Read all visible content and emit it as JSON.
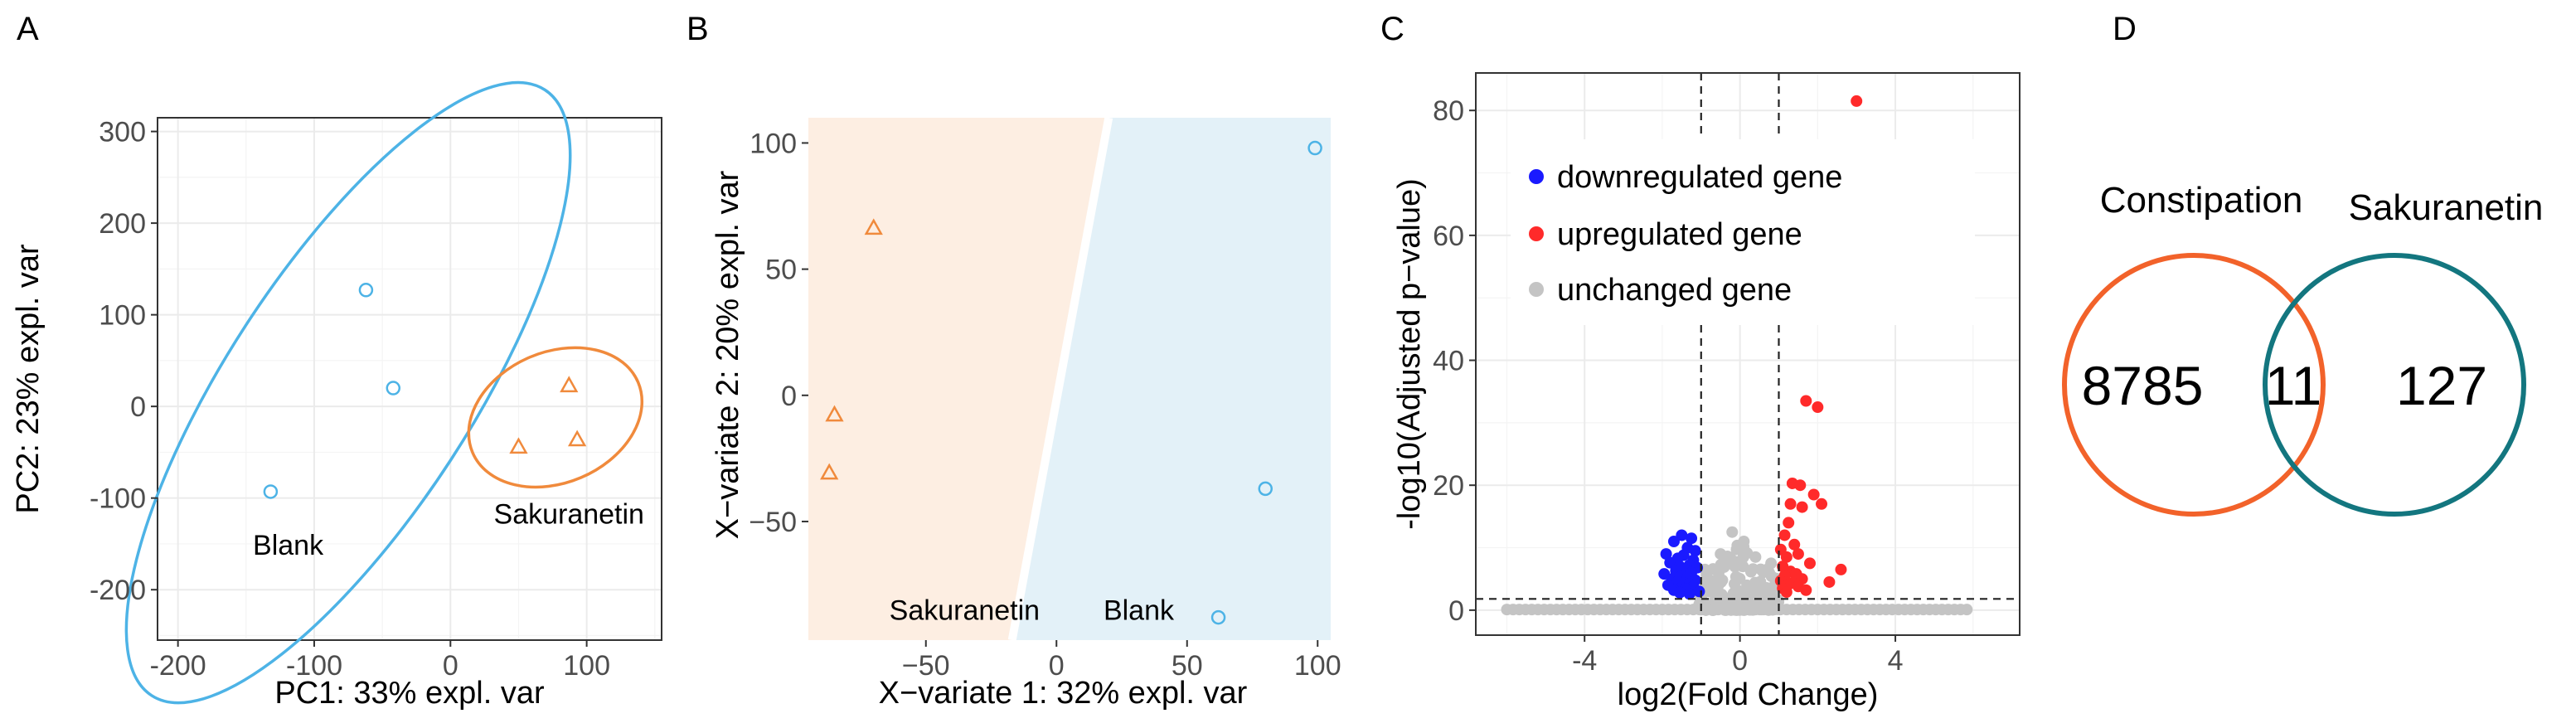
{
  "chart_data": [
    {
      "panel": "A",
      "type": "scatter",
      "xlabel": "PC1: 33% expl. var",
      "ylabel": "PC2: 23% expl. var",
      "xlim": [
        -215,
        155
      ],
      "ylim": [
        -255,
        315
      ],
      "x_ticks": [
        -200,
        -100,
        0,
        100
      ],
      "y_ticks": [
        -200,
        -100,
        0,
        100,
        200,
        300
      ],
      "grid": true,
      "series": [
        {
          "name": "Blank",
          "marker": "circle",
          "color": "#4db3e6",
          "x": [
            -62,
            -42,
            -132
          ],
          "y": [
            127,
            20,
            -93
          ],
          "ellipse": {
            "cx": -75,
            "cy": 15,
            "rx": 265,
            "ry": 90,
            "angle_deg": 57
          },
          "label": {
            "text": "Blank",
            "x": -145,
            "y": -162
          }
        },
        {
          "name": "Sakuranetin",
          "marker": "triangle",
          "color": "#f08a3c",
          "x": [
            87,
            93,
            50
          ],
          "y": [
            22,
            -37,
            -45
          ],
          "ellipse": {
            "cx": 77,
            "cy": -12,
            "rx": 66,
            "ry": 48,
            "angle_deg": 23
          },
          "label": {
            "text": "Sakuranetin",
            "x": 87,
            "y": -128
          }
        }
      ]
    },
    {
      "panel": "B",
      "type": "scatter",
      "xlabel": "X−variate 1: 32% expl. var",
      "ylabel": "X−variate 2: 20% expl. var",
      "xlim": [
        -95,
        105
      ],
      "ylim": [
        -97,
        110
      ],
      "x_ticks": [
        -50,
        0,
        50,
        100
      ],
      "x_tick_labels": [
        "−50",
        "0",
        "50",
        "100"
      ],
      "y_ticks": [
        -50,
        0,
        50,
        100
      ],
      "y_tick_labels": [
        "−50",
        "0",
        "50",
        "100"
      ],
      "grid": false,
      "background_regions": [
        {
          "name": "Sakuranetin",
          "color": "#fdeee2"
        },
        {
          "name": "Blank",
          "color": "#e3f1f8"
        }
      ],
      "decision_boundary": {
        "x": [
          20,
          -17
        ],
        "y": [
          110,
          -97
        ]
      },
      "series": [
        {
          "name": "Blank",
          "marker": "circle",
          "color": "#4db3e6",
          "x": [
            99,
            80,
            62
          ],
          "y": [
            98,
            -37,
            -88
          ]
        },
        {
          "name": "Sakuranetin",
          "marker": "triangle",
          "color": "#f08a3c",
          "x": [
            -70,
            -85,
            -87
          ],
          "y": [
            66,
            -8,
            -31
          ]
        }
      ],
      "region_labels": [
        {
          "text": "Sakuranetin",
          "x": -64,
          "y": -89
        },
        {
          "text": "Blank",
          "x": 18,
          "y": -89
        }
      ]
    },
    {
      "panel": "C",
      "type": "scatter",
      "xlabel": "log2(Fold Change)",
      "ylabel": "-log10(Adjusted p−value)",
      "xlim": [
        -6.8,
        7.2
      ],
      "ylim": [
        -4,
        86
      ],
      "x_ticks": [
        -4,
        0,
        4
      ],
      "x_tick_labels": [
        "-4",
        "0",
        "4"
      ],
      "y_ticks": [
        0,
        20,
        40,
        60,
        80
      ],
      "grid": true,
      "thresholds": {
        "x": [
          -1,
          1
        ],
        "y": 1.8
      },
      "series": [
        {
          "name": "downregulated gene",
          "color": "#1a1aff",
          "x": [
            -1.25,
            -1.5,
            -1.7,
            -1.35,
            -1.15,
            -1.9,
            -1.45,
            -1.6,
            -1.2,
            -1.8,
            -1.3,
            -1.55,
            -1.1,
            -1.4,
            -1.65,
            -1.25,
            -1.95,
            -1.5,
            -1.35,
            -1.75,
            -1.15,
            -1.6,
            -1.45,
            -1.3,
            -1.85,
            -1.2,
            -1.5,
            -1.4,
            -1.7,
            -1.05,
            -1.55,
            -1.3
          ],
          "y": [
            11.5,
            12,
            11,
            10,
            9.5,
            9,
            8.8,
            8.3,
            8,
            7.6,
            7.2,
            7,
            6.8,
            6.5,
            6.3,
            6,
            5.8,
            5.5,
            5.3,
            5,
            4.8,
            4.6,
            4.4,
            4.2,
            4.0,
            3.8,
            3.6,
            3.4,
            3.2,
            3,
            2.8,
            2.6
          ]
        },
        {
          "name": "upregulated gene",
          "color": "#ff2a2a",
          "x": [
            3.0,
            1.7,
            2.0,
            1.9,
            1.35,
            1.55,
            1.3,
            2.1,
            1.6,
            1.25,
            1.15,
            2.6,
            2.3,
            1.4,
            1.05,
            1.5,
            1.2,
            1.8,
            1.1,
            1.3,
            1.45,
            1.15,
            1.6,
            1.05,
            1.35,
            1.25,
            1.5,
            1.1,
            1.7,
            1.2
          ],
          "y": [
            81.5,
            33.5,
            32.5,
            18.5,
            20.3,
            20,
            17,
            17,
            16.5,
            14,
            12,
            6.5,
            4.5,
            10.5,
            9.7,
            9,
            8.5,
            7.5,
            7,
            6.2,
            5.8,
            5.5,
            5,
            4.7,
            4.4,
            4.1,
            3.8,
            3.5,
            3.2,
            2.9
          ]
        },
        {
          "name": "unchanged gene",
          "color": "#c4c4c4"
        }
      ]
    },
    {
      "panel": "D",
      "type": "venn",
      "sets": [
        {
          "name": "Constipation",
          "color": "#f2622a",
          "only_count": "8785"
        },
        {
          "name": "Sakuranetin",
          "color": "#13767f",
          "only_count": "127"
        }
      ],
      "intersection": "11"
    }
  ]
}
